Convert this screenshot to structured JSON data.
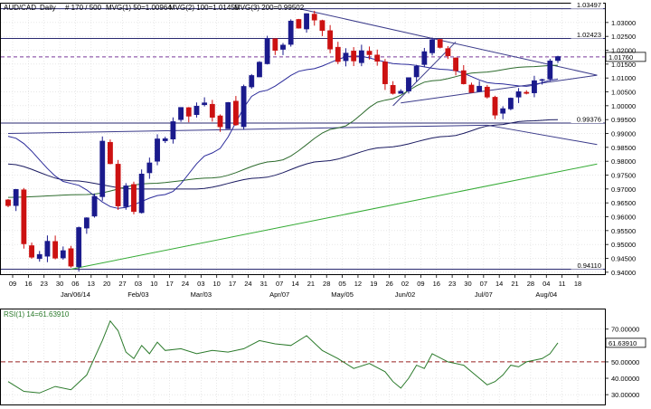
{
  "header": {
    "symbol": "AUD/CAD",
    "timeframe": "Daily",
    "bars": "# 170 / 500",
    "mvg1": "MVG(1) 50=1.00964",
    "mvg2": "MVG(2) 100=1.01455",
    "mvg3": "MVG(3) 200=0.99502"
  },
  "colors": {
    "background": "#ffffff",
    "grid": "#d9d9d9",
    "frame": "#000000",
    "candle_up": "#1a1a8c",
    "candle_down": "#cc1111",
    "ma50": "#2b2b9a",
    "ma100": "#2d6b2d",
    "ma200": "#1a1a60",
    "trendline": "#3a3a8a",
    "support_line": "#33aa33",
    "hline": "#2a2a70",
    "current_price": "#7a3a9a",
    "rsi_line": "#2b7a2b",
    "rsi_mid": "#992222"
  },
  "chart_data": [
    {
      "type": "candlestick",
      "name": "price",
      "y_ticks": [
        "1.03000",
        "1.02500",
        "1.02000",
        "1.01500",
        "1.01000",
        "1.00500",
        "1.00000",
        "0.99500",
        "0.99000",
        "0.98500",
        "0.98000",
        "0.97500",
        "0.97000",
        "0.96500",
        "0.96000",
        "0.95500",
        "0.95000",
        "0.94500",
        "0.94000"
      ],
      "ylim": [
        0.9393,
        1.0368
      ],
      "x_labels": [
        "09",
        "16",
        "23",
        "30",
        "06",
        "13",
        "20",
        "27",
        "03",
        "10",
        "17",
        "24",
        "03",
        "10",
        "17",
        "24",
        "31",
        "07",
        "14",
        "21",
        "28",
        "05",
        "12",
        "19",
        "26",
        "02",
        "09",
        "16",
        "23",
        "30",
        "07",
        "14",
        "21",
        "28",
        "04",
        "11",
        "18"
      ],
      "x_month_labels": [
        {
          "label": "Jan/06/14",
          "at_day": 4
        },
        {
          "label": "Feb/03",
          "at_day": 8
        },
        {
          "label": "Mar/03",
          "at_day": 12
        },
        {
          "label": "Apr/07",
          "at_day": 17
        },
        {
          "label": "May/05",
          "at_day": 21
        },
        {
          "label": "Jun/02",
          "at_day": 25
        },
        {
          "label": "Jul/07",
          "at_day": 30
        },
        {
          "label": "Aug/04",
          "at_day": 34
        }
      ],
      "hlines": [
        {
          "value": 1.03497,
          "label": "1.03497"
        },
        {
          "value": 1.02423,
          "label": "1.02423"
        },
        {
          "value": 0.99376,
          "label": "0.99376"
        },
        {
          "value": 0.9411,
          "label": "0.94110"
        }
      ],
      "current_price": {
        "value": 1.0176,
        "label": "1.01760"
      },
      "close_path": [
        [
          0,
          0.964
        ],
        [
          1,
          0.97
        ],
        [
          2,
          0.95
        ],
        [
          3,
          0.945
        ],
        [
          4,
          0.946
        ],
        [
          5,
          0.952
        ],
        [
          6,
          0.946
        ],
        [
          7,
          0.948
        ],
        [
          8,
          0.943
        ],
        [
          9,
          0.956
        ],
        [
          10,
          0.96
        ],
        [
          11,
          0.968
        ],
        [
          12,
          0.987
        ],
        [
          13,
          0.98
        ],
        [
          14,
          0.965
        ],
        [
          15,
          0.97
        ],
        [
          16,
          0.962
        ],
        [
          17,
          0.976
        ],
        [
          18,
          0.98
        ],
        [
          19,
          0.987
        ],
        [
          20,
          0.988
        ],
        [
          21,
          0.995
        ],
        [
          22,
          1.0
        ],
        [
          23,
          0.996
        ],
        [
          24,
          1.0
        ],
        [
          25,
          1.002
        ],
        [
          26,
          0.997
        ],
        [
          27,
          0.992
        ],
        [
          28,
          1.002
        ],
        [
          29,
          0.993
        ],
        [
          30,
          1.007
        ],
        [
          31,
          1.012
        ],
        [
          32,
          1.015
        ],
        [
          33,
          1.024
        ],
        [
          34,
          1.02
        ],
        [
          35,
          1.022
        ],
        [
          36,
          1.03
        ],
        [
          37,
          1.029
        ],
        [
          38,
          1.034
        ],
        [
          39,
          1.031
        ],
        [
          40,
          1.027
        ],
        [
          41,
          1.02
        ],
        [
          42,
          1.016
        ],
        [
          43,
          1.019
        ],
        [
          44,
          1.016
        ],
        [
          45,
          1.02
        ],
        [
          46,
          1.018
        ],
        [
          47,
          1.016
        ],
        [
          48,
          1.009
        ],
        [
          49,
          1.004
        ],
        [
          50,
          1.006
        ],
        [
          51,
          1.009
        ],
        [
          52,
          1.015
        ],
        [
          53,
          1.02
        ],
        [
          54,
          1.023
        ],
        [
          55,
          1.02
        ],
        [
          56,
          1.018
        ],
        [
          57,
          1.013
        ],
        [
          58,
          1.008
        ],
        [
          59,
          1.005
        ],
        [
          60,
          1.008
        ],
        [
          61,
          1.003
        ],
        [
          62,
          0.996
        ],
        [
          63,
          0.998
        ],
        [
          64,
          1.002
        ],
        [
          65,
          1.006
        ],
        [
          66,
          1.005
        ],
        [
          67,
          1.008
        ],
        [
          68,
          1.01
        ],
        [
          69,
          1.015
        ],
        [
          70,
          1.0176
        ]
      ],
      "candle_count": 71,
      "ma50": [
        [
          0,
          0.989
        ],
        [
          8,
          0.972
        ],
        [
          14,
          0.963
        ],
        [
          20,
          0.968
        ],
        [
          26,
          0.983
        ],
        [
          32,
          1.005
        ],
        [
          38,
          1.013
        ],
        [
          44,
          1.018
        ],
        [
          50,
          1.015
        ],
        [
          56,
          1.013
        ],
        [
          62,
          1.008
        ],
        [
          66,
          1.007
        ],
        [
          70,
          1.0096
        ]
      ],
      "ma100": [
        [
          0,
          0.967
        ],
        [
          10,
          0.968
        ],
        [
          18,
          0.972
        ],
        [
          26,
          0.974
        ],
        [
          34,
          0.98
        ],
        [
          42,
          0.992
        ],
        [
          48,
          1.002
        ],
        [
          54,
          1.009
        ],
        [
          60,
          1.012
        ],
        [
          66,
          1.014
        ],
        [
          70,
          1.0146
        ]
      ],
      "ma200": [
        [
          0,
          0.979
        ],
        [
          8,
          0.973
        ],
        [
          16,
          0.97
        ],
        [
          24,
          0.97
        ],
        [
          32,
          0.974
        ],
        [
          40,
          0.98
        ],
        [
          48,
          0.985
        ],
        [
          56,
          0.989
        ],
        [
          62,
          0.993
        ],
        [
          66,
          0.9945
        ],
        [
          70,
          0.995
        ]
      ],
      "trendlines": [
        {
          "from": [
            37,
            1.035
          ],
          "to": [
            75,
            1.011
          ],
          "kind": "resistance"
        },
        {
          "from": [
            49,
            1.0
          ],
          "to": [
            57,
            1.023
          ],
          "kind": "channel"
        },
        {
          "from": [
            50,
            1.001
          ],
          "to": [
            75,
            1.011
          ],
          "kind": "channel"
        },
        {
          "from": [
            0,
            0.99
          ],
          "to": [
            61,
            0.993
          ],
          "kind": "channel"
        },
        {
          "from": [
            61,
            0.993
          ],
          "to": [
            75,
            0.986
          ],
          "kind": "support"
        },
        {
          "from": [
            8,
            0.9411
          ],
          "to": [
            75,
            0.979
          ],
          "kind": "long-support"
        }
      ]
    },
    {
      "type": "line",
      "name": "rsi",
      "title": "RSI(1) 14=61.63910",
      "y_ticks": [
        "70.00000",
        "50.00000",
        "40.00000",
        "30.00000"
      ],
      "y_tick_values": [
        70,
        50,
        40,
        30
      ],
      "ylim": [
        24,
        82
      ],
      "midline": 50,
      "current": {
        "value": 61.6391,
        "label": "61.63910"
      },
      "values": [
        [
          0,
          38
        ],
        [
          2,
          32
        ],
        [
          4,
          31
        ],
        [
          6,
          35
        ],
        [
          8,
          33
        ],
        [
          10,
          42
        ],
        [
          12,
          63
        ],
        [
          13,
          75
        ],
        [
          14,
          69
        ],
        [
          15,
          56
        ],
        [
          16,
          52
        ],
        [
          17,
          60
        ],
        [
          18,
          55
        ],
        [
          19,
          62
        ],
        [
          20,
          57
        ],
        [
          22,
          58
        ],
        [
          24,
          55
        ],
        [
          26,
          57
        ],
        [
          28,
          56
        ],
        [
          30,
          58
        ],
        [
          32,
          63
        ],
        [
          34,
          61
        ],
        [
          36,
          60
        ],
        [
          38,
          66
        ],
        [
          40,
          57
        ],
        [
          42,
          52
        ],
        [
          44,
          46
        ],
        [
          46,
          49
        ],
        [
          48,
          44
        ],
        [
          49,
          38
        ],
        [
          50,
          34
        ],
        [
          51,
          40
        ],
        [
          52,
          48
        ],
        [
          53,
          46
        ],
        [
          54,
          55
        ],
        [
          56,
          50
        ],
        [
          58,
          48
        ],
        [
          60,
          40
        ],
        [
          61,
          36
        ],
        [
          62,
          38
        ],
        [
          63,
          42
        ],
        [
          64,
          48
        ],
        [
          65,
          47
        ],
        [
          66,
          50
        ],
        [
          68,
          52
        ],
        [
          69,
          55
        ],
        [
          70,
          61.64
        ]
      ]
    }
  ]
}
